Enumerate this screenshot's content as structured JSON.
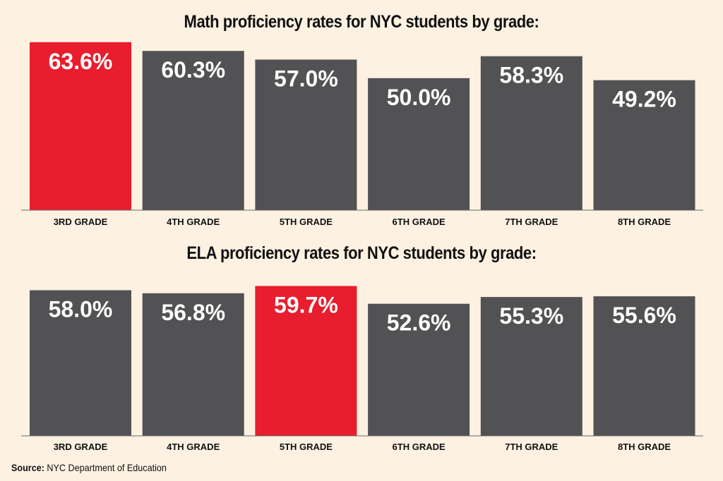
{
  "chart_data": [
    {
      "type": "bar",
      "title": "Math proficiency rates for NYC students by grade:",
      "categories": [
        "3RD GRADE",
        "4TH GRADE",
        "5TH GRADE",
        "6TH GRADE",
        "7TH GRADE",
        "8TH GRADE"
      ],
      "values": [
        63.6,
        60.3,
        57.0,
        50.0,
        58.3,
        49.2
      ],
      "value_labels": [
        "63.6%",
        "60.3%",
        "57.0%",
        "50.0%",
        "58.3%",
        "49.2%"
      ],
      "highlight_index": 0,
      "colors": {
        "bar": "#525254",
        "highlight": "#e81d2d"
      },
      "xlabel": "",
      "ylabel": "",
      "grid": false
    },
    {
      "type": "bar",
      "title": "ELA proficiency rates for NYC students by grade:",
      "categories": [
        "3RD GRADE",
        "4TH GRADE",
        "5TH GRADE",
        "6TH GRADE",
        "7TH GRADE",
        "8TH GRADE"
      ],
      "values": [
        58.0,
        56.8,
        59.7,
        52.6,
        55.3,
        55.6
      ],
      "value_labels": [
        "58.0%",
        "56.8%",
        "59.7%",
        "52.6%",
        "55.3%",
        "55.6%"
      ],
      "highlight_index": 2,
      "colors": {
        "bar": "#525254",
        "highlight": "#e81d2d"
      },
      "xlabel": "",
      "ylabel": "",
      "grid": false
    }
  ],
  "source": {
    "label": "Source:",
    "text": "NYC Department of Education"
  }
}
